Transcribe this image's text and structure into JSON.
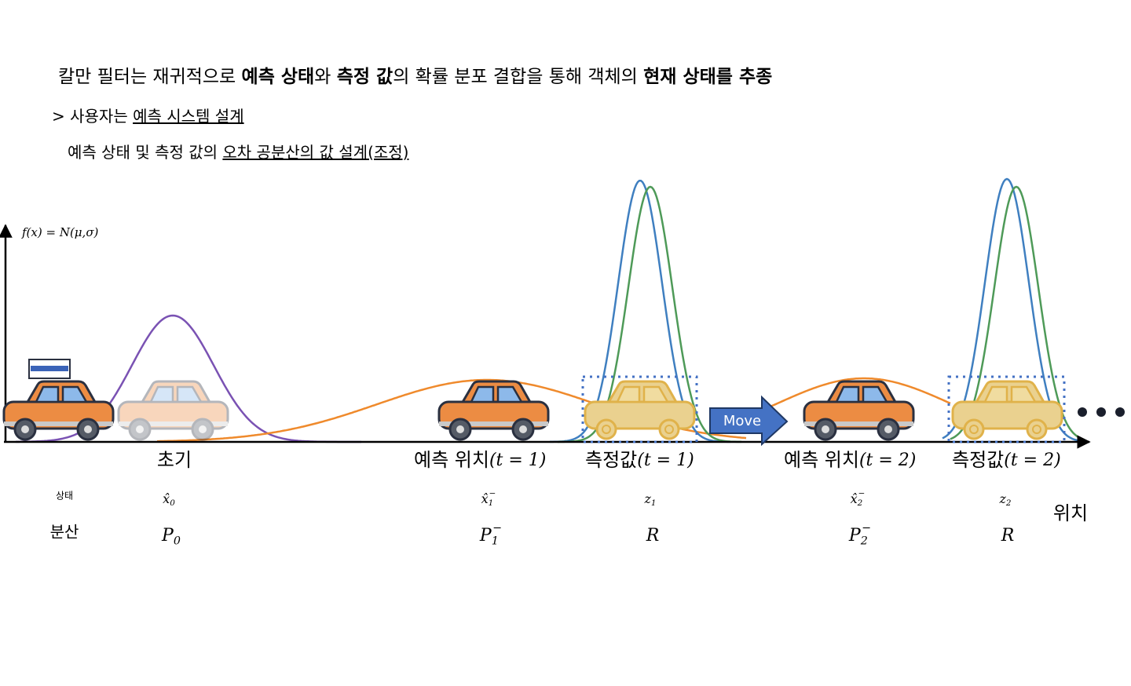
{
  "header": {
    "title": [
      {
        "text": "칼만 필터는 재귀적으로 ",
        "bold": false
      },
      {
        "text": "예측 상태",
        "bold": true
      },
      {
        "text": "와 ",
        "bold": false
      },
      {
        "text": "측정 값",
        "bold": true
      },
      {
        "text": "의 확률 분포 결합을 통해 객체의 ",
        "bold": false
      },
      {
        "text": "현재 상태를 추종",
        "bold": true
      }
    ],
    "line1": {
      "plain": "> 사용자는 ",
      "underlined": "예측 시스템 설계"
    },
    "line2": {
      "plain": "예측 상태 및 측정 값의 ",
      "underlined": "오차 공분산의 값 설계(조정)"
    }
  },
  "diagram": {
    "y_axis_label": "f(x) = N(μ,σ)",
    "x_axis_label": "위치",
    "move": "Move",
    "row_labels": {
      "state": "상태",
      "variance": "분산"
    },
    "stages": [
      {
        "label": "초기",
        "time": null,
        "state": {
          "base": "x̂",
          "sub": "0",
          "sup": null
        },
        "variance": {
          "base": "P",
          "sub": "0",
          "sup": null
        }
      },
      {
        "label": "예측 위치",
        "time": "(t = 1)",
        "state": {
          "base": "x̂",
          "sub": "1",
          "sup": "−"
        },
        "variance": {
          "base": "P",
          "sub": "1",
          "sup": "−"
        }
      },
      {
        "label": "측정값",
        "time": "(t = 1)",
        "state": {
          "base": "z",
          "sub": "1",
          "sup": null
        },
        "variance": {
          "base": "R",
          "sub": null,
          "sup": null
        }
      },
      {
        "label": "예측 위치",
        "time": "(t = 2)",
        "state": {
          "base": "x̂",
          "sub": "2",
          "sup": "−"
        },
        "variance": {
          "base": "P",
          "sub": "2",
          "sup": "−"
        }
      },
      {
        "label": "측정값",
        "time": "(t = 2)",
        "state": {
          "base": "z",
          "sub": "2",
          "sup": null
        },
        "variance": {
          "base": "R",
          "sub": null,
          "sup": null
        }
      }
    ]
  }
}
